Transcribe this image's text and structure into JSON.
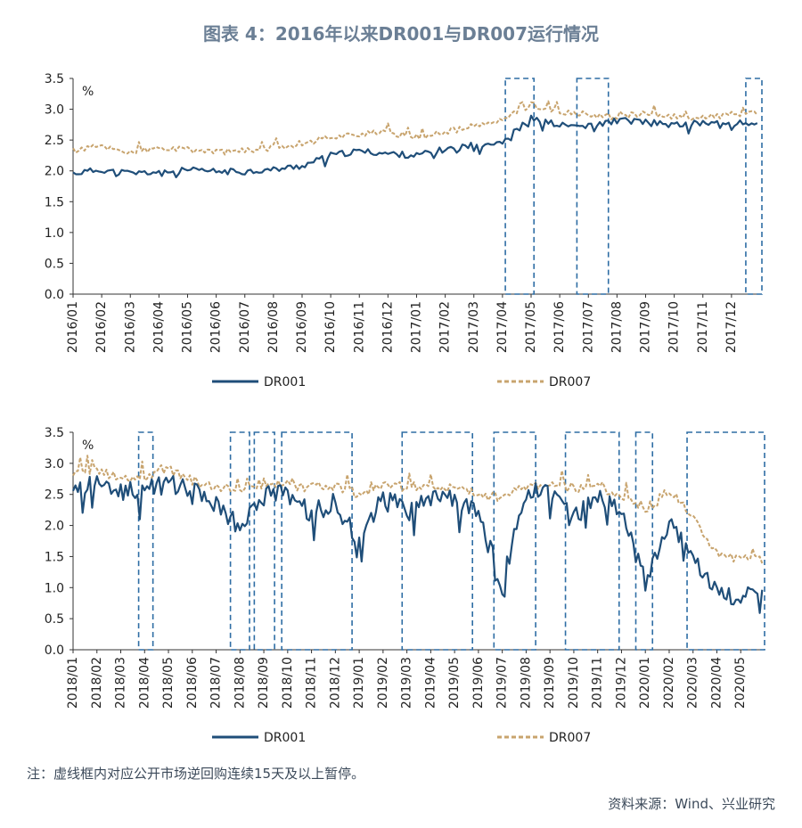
{
  "title": "图表 4：2016年以来DR001与DR007运行情况",
  "note": "注：虚线框内对应公开市场逆回购连续15天及以上暂停。",
  "source": "资料来源：Wind、兴业研究",
  "colors": {
    "dr001": "#1f4e79",
    "dr007": "#c8a46e",
    "box": "#2e6da4",
    "axis": "#333333"
  },
  "chart_data": [
    {
      "type": "line",
      "unit": "%",
      "ylim": [
        0,
        3.5
      ],
      "yticks": [
        "0.0",
        "0.5",
        "1.0",
        "1.5",
        "2.0",
        "2.5",
        "3.0",
        "3.5"
      ],
      "categories": [
        "2016/01",
        "2016/02",
        "2016/03",
        "2016/04",
        "2016/05",
        "2016/06",
        "2016/07",
        "2016/08",
        "2016/09",
        "2016/10",
        "2016/11",
        "2016/12",
        "2017/01",
        "2017/02",
        "2017/03",
        "2017/04",
        "2017/05",
        "2017/06",
        "2017/07",
        "2017/08",
        "2017/09",
        "2017/10",
        "2017/11",
        "2017/12"
      ],
      "series": [
        {
          "name": "DR001",
          "values": [
            1.96,
            2.02,
            1.96,
            1.98,
            2.01,
            1.99,
            1.99,
            2.02,
            2.08,
            2.25,
            2.32,
            2.28,
            2.25,
            2.35,
            2.42,
            2.48,
            2.85,
            2.74,
            2.72,
            2.82,
            2.8,
            2.74,
            2.78,
            2.77
          ]
        },
        {
          "name": "DR007",
          "values": [
            2.33,
            2.4,
            2.3,
            2.36,
            2.34,
            2.31,
            2.32,
            2.38,
            2.45,
            2.55,
            2.6,
            2.62,
            2.55,
            2.63,
            2.72,
            2.82,
            3.08,
            2.95,
            2.91,
            2.88,
            2.92,
            2.88,
            2.86,
            2.92
          ]
        }
      ],
      "boxes": [
        {
          "from": "2017/04",
          "to": "2017/05",
          "from_frac": 0.1,
          "to_frac": 0.1
        },
        {
          "from": "2017/06",
          "to": "2017/07",
          "from_frac": 0.6,
          "to_frac": 0.7
        },
        {
          "from": "2017/12",
          "to": "2017/12",
          "from_frac": 0.5,
          "to_frac": 1.2
        }
      ]
    },
    {
      "type": "line",
      "unit": "%",
      "ylim": [
        0,
        3.5
      ],
      "yticks": [
        "0.0",
        "0.5",
        "1.0",
        "1.5",
        "2.0",
        "2.5",
        "3.0",
        "3.5"
      ],
      "categories": [
        "2018/01",
        "2018/02",
        "2018/03",
        "2018/04",
        "2018/05",
        "2018/06",
        "2018/07",
        "2018/08",
        "2018/09",
        "2018/10",
        "2018/11",
        "2018/12",
        "2019/01",
        "2019/02",
        "2019/03",
        "2019/04",
        "2019/05",
        "2019/06",
        "2019/07",
        "2019/08",
        "2019/09",
        "2019/10",
        "2019/11",
        "2019/12",
        "2020/01",
        "2020/02",
        "2020/03",
        "2020/04",
        "2020/05"
      ],
      "series": [
        {
          "name": "DR001",
          "values": [
            2.6,
            2.68,
            2.62,
            2.58,
            2.66,
            2.55,
            2.35,
            1.95,
            2.58,
            2.45,
            2.2,
            2.38,
            1.7,
            2.5,
            2.2,
            2.45,
            2.45,
            2.15,
            1.05,
            2.55,
            2.62,
            2.1,
            2.45,
            2.2,
            1.1,
            2.05,
            1.55,
            0.9,
            0.85
          ]
        },
        {
          "name": "DR007",
          "values": [
            2.85,
            2.9,
            2.75,
            2.78,
            2.9,
            2.72,
            2.62,
            2.6,
            2.68,
            2.62,
            2.6,
            2.65,
            2.5,
            2.62,
            2.62,
            2.62,
            2.62,
            2.5,
            2.45,
            2.65,
            2.68,
            2.6,
            2.62,
            2.48,
            2.25,
            2.55,
            2.15,
            1.55,
            1.45
          ]
        }
      ],
      "boxes": [
        {
          "from": "2018/03",
          "to": "2018/04",
          "from_frac": 0.75,
          "to_frac": 0.35
        },
        {
          "from": "2018/07",
          "to": "2018/08",
          "from_frac": 0.6,
          "to_frac": 0.4
        },
        {
          "from": "2018/08",
          "to": "2018/09",
          "from_frac": 0.6,
          "to_frac": 0.45
        },
        {
          "from": "2018/09",
          "to": "2018/12",
          "from_frac": 0.75,
          "to_frac": 0.7
        },
        {
          "from": "2019/02",
          "to": "2019/05",
          "from_frac": 0.8,
          "to_frac": 0.75
        },
        {
          "from": "2019/06",
          "to": "2019/08",
          "from_frac": 0.65,
          "to_frac": 0.4
        },
        {
          "from": "2019/09",
          "to": "2019/11",
          "from_frac": 0.65,
          "to_frac": 0.9
        },
        {
          "from": "2019/12",
          "to": "2020/01",
          "from_frac": 0.6,
          "to_frac": 0.3
        },
        {
          "from": "2020/02",
          "to": "2020/05",
          "from_frac": 0.75,
          "to_frac": 1.0
        }
      ]
    }
  ]
}
